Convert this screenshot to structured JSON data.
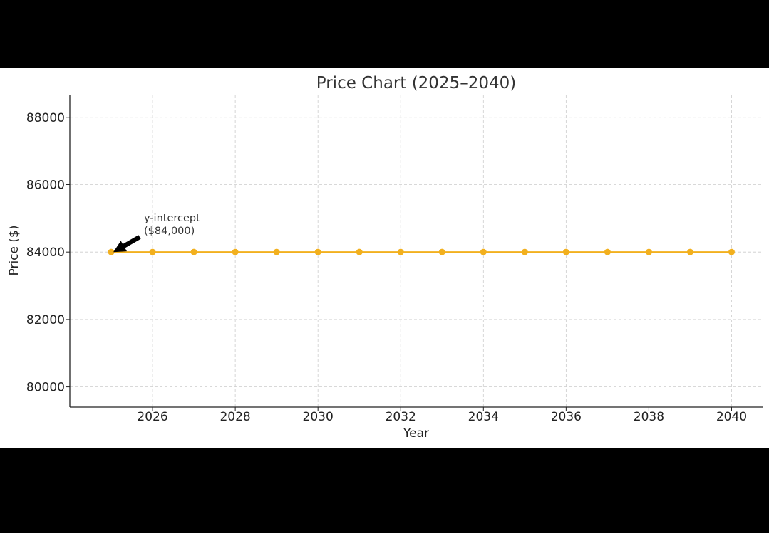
{
  "chart_data": {
    "type": "line",
    "title": "Price Chart (2025–2040)",
    "xlabel": "Year",
    "ylabel": "Price ($)",
    "x": [
      2025,
      2026,
      2027,
      2028,
      2029,
      2030,
      2031,
      2032,
      2033,
      2034,
      2035,
      2036,
      2037,
      2038,
      2039,
      2040
    ],
    "series": [
      {
        "values": [
          84000,
          84000,
          84000,
          84000,
          84000,
          84000,
          84000,
          84000,
          84000,
          84000,
          84000,
          84000,
          84000,
          84000,
          84000,
          84000
        ]
      }
    ],
    "xlim": [
      2024.0,
      2040.75
    ],
    "ylim": [
      79400,
      88650
    ],
    "xticks": [
      2026,
      2028,
      2030,
      2032,
      2034,
      2036,
      2038,
      2040
    ],
    "yticks": [
      80000,
      82000,
      84000,
      86000,
      88000
    ],
    "grid": true,
    "line_color": "#F2B01E",
    "annotation": {
      "line1": "y-intercept",
      "line2": "($84,000)",
      "points_to": {
        "x": 2025,
        "y": 84000
      }
    }
  }
}
